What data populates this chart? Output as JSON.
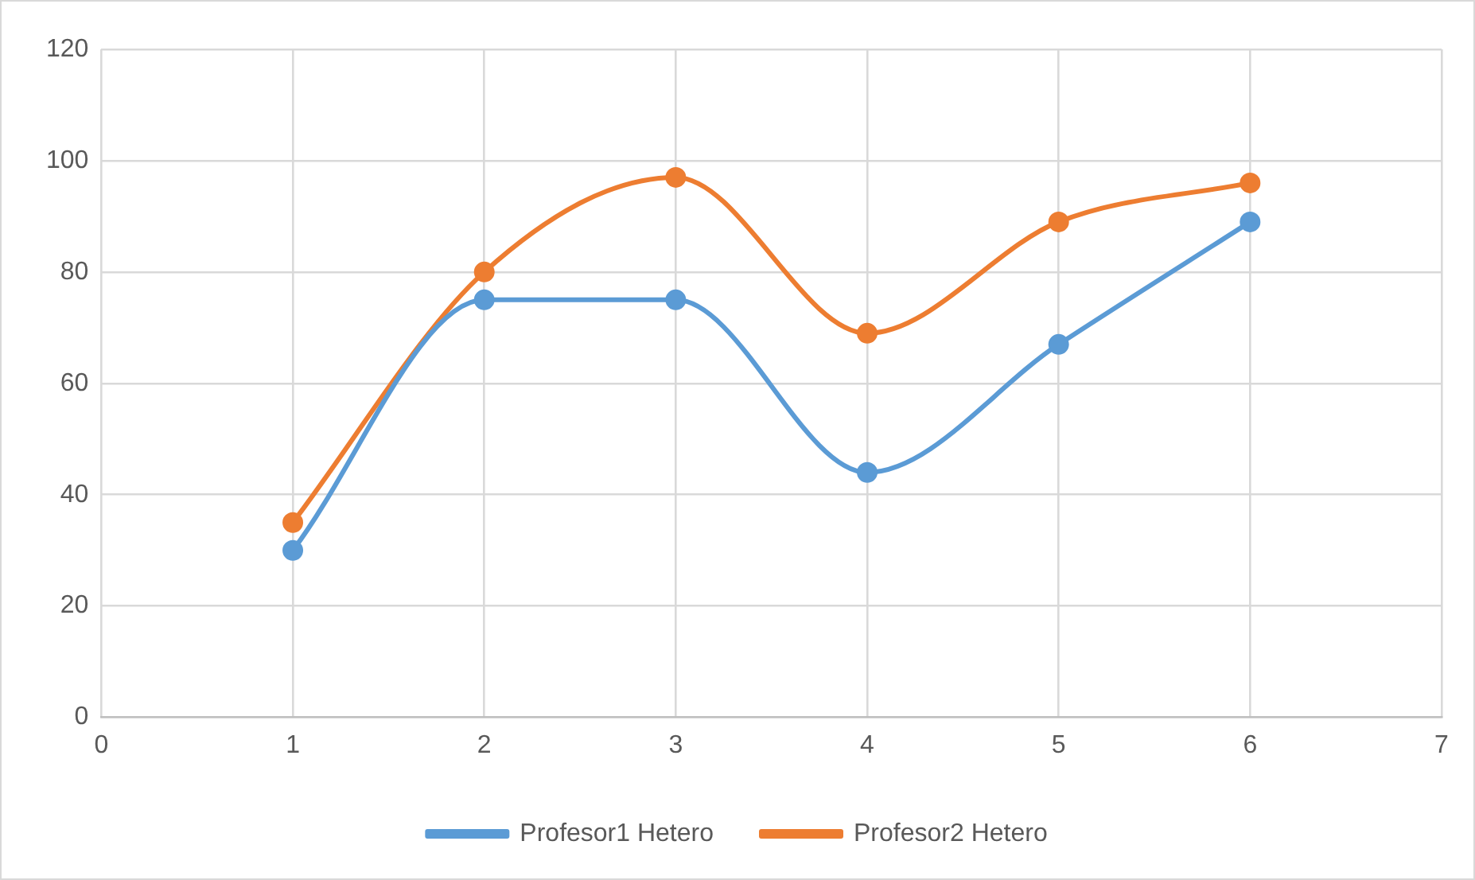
{
  "chart_data": {
    "type": "line",
    "x": [
      1,
      2,
      3,
      4,
      5,
      6
    ],
    "series": [
      {
        "name": "Profesor1 Hetero",
        "color": "#5b9bd5",
        "values": [
          30,
          75,
          75,
          44,
          67,
          89
        ]
      },
      {
        "name": "Profesor2 Hetero",
        "color": "#ed7d31",
        "values": [
          35,
          80,
          97,
          69,
          89,
          96
        ]
      }
    ],
    "xlim": [
      0,
      7
    ],
    "xticks": [
      0,
      1,
      2,
      3,
      4,
      5,
      6,
      7
    ],
    "ylim": [
      0,
      120
    ],
    "yticks": [
      0,
      20,
      40,
      60,
      80,
      100,
      120
    ],
    "grid": true,
    "legend": "bottom",
    "marker": "circle",
    "line_style": "solid"
  }
}
